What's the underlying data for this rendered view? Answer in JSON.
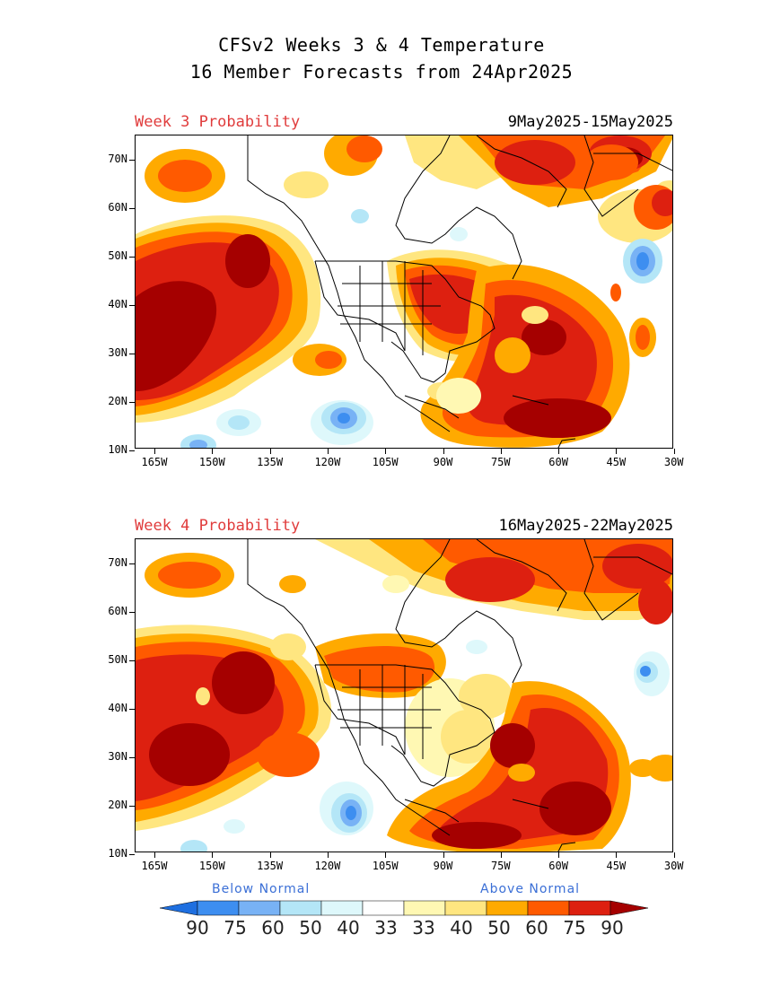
{
  "header": {
    "title_line1": "CFSv2 Weeks 3 & 4 Temperature",
    "title_line2": "16 Member Forecasts from 24Apr2025"
  },
  "panels": [
    {
      "label": "Week 3 Probability",
      "date_range": "9May2025-15May2025"
    },
    {
      "label": "Week 4 Probability",
      "date_range": "16May2025-22May2025"
    }
  ],
  "axes": {
    "lat_labels": [
      "70N",
      "60N",
      "50N",
      "40N",
      "30N",
      "20N",
      "10N"
    ],
    "lon_labels": [
      "165W",
      "150W",
      "135W",
      "120W",
      "105W",
      "90W",
      "75W",
      "60W",
      "45W",
      "30W"
    ]
  },
  "legend": {
    "below_label": "Below Normal",
    "above_label": "Above Normal",
    "numbers": [
      "90",
      "75",
      "60",
      "50",
      "40",
      "33",
      "33",
      "40",
      "50",
      "60",
      "75",
      "90"
    ],
    "colors": [
      "#1e6fe0",
      "#3d8ef0",
      "#78b2f5",
      "#b4e6f7",
      "#def8fb",
      "#ffffff",
      "#fff8b3",
      "#ffe680",
      "#ffaa00",
      "#ff5a00",
      "#dd2010",
      "#a50000"
    ]
  }
}
